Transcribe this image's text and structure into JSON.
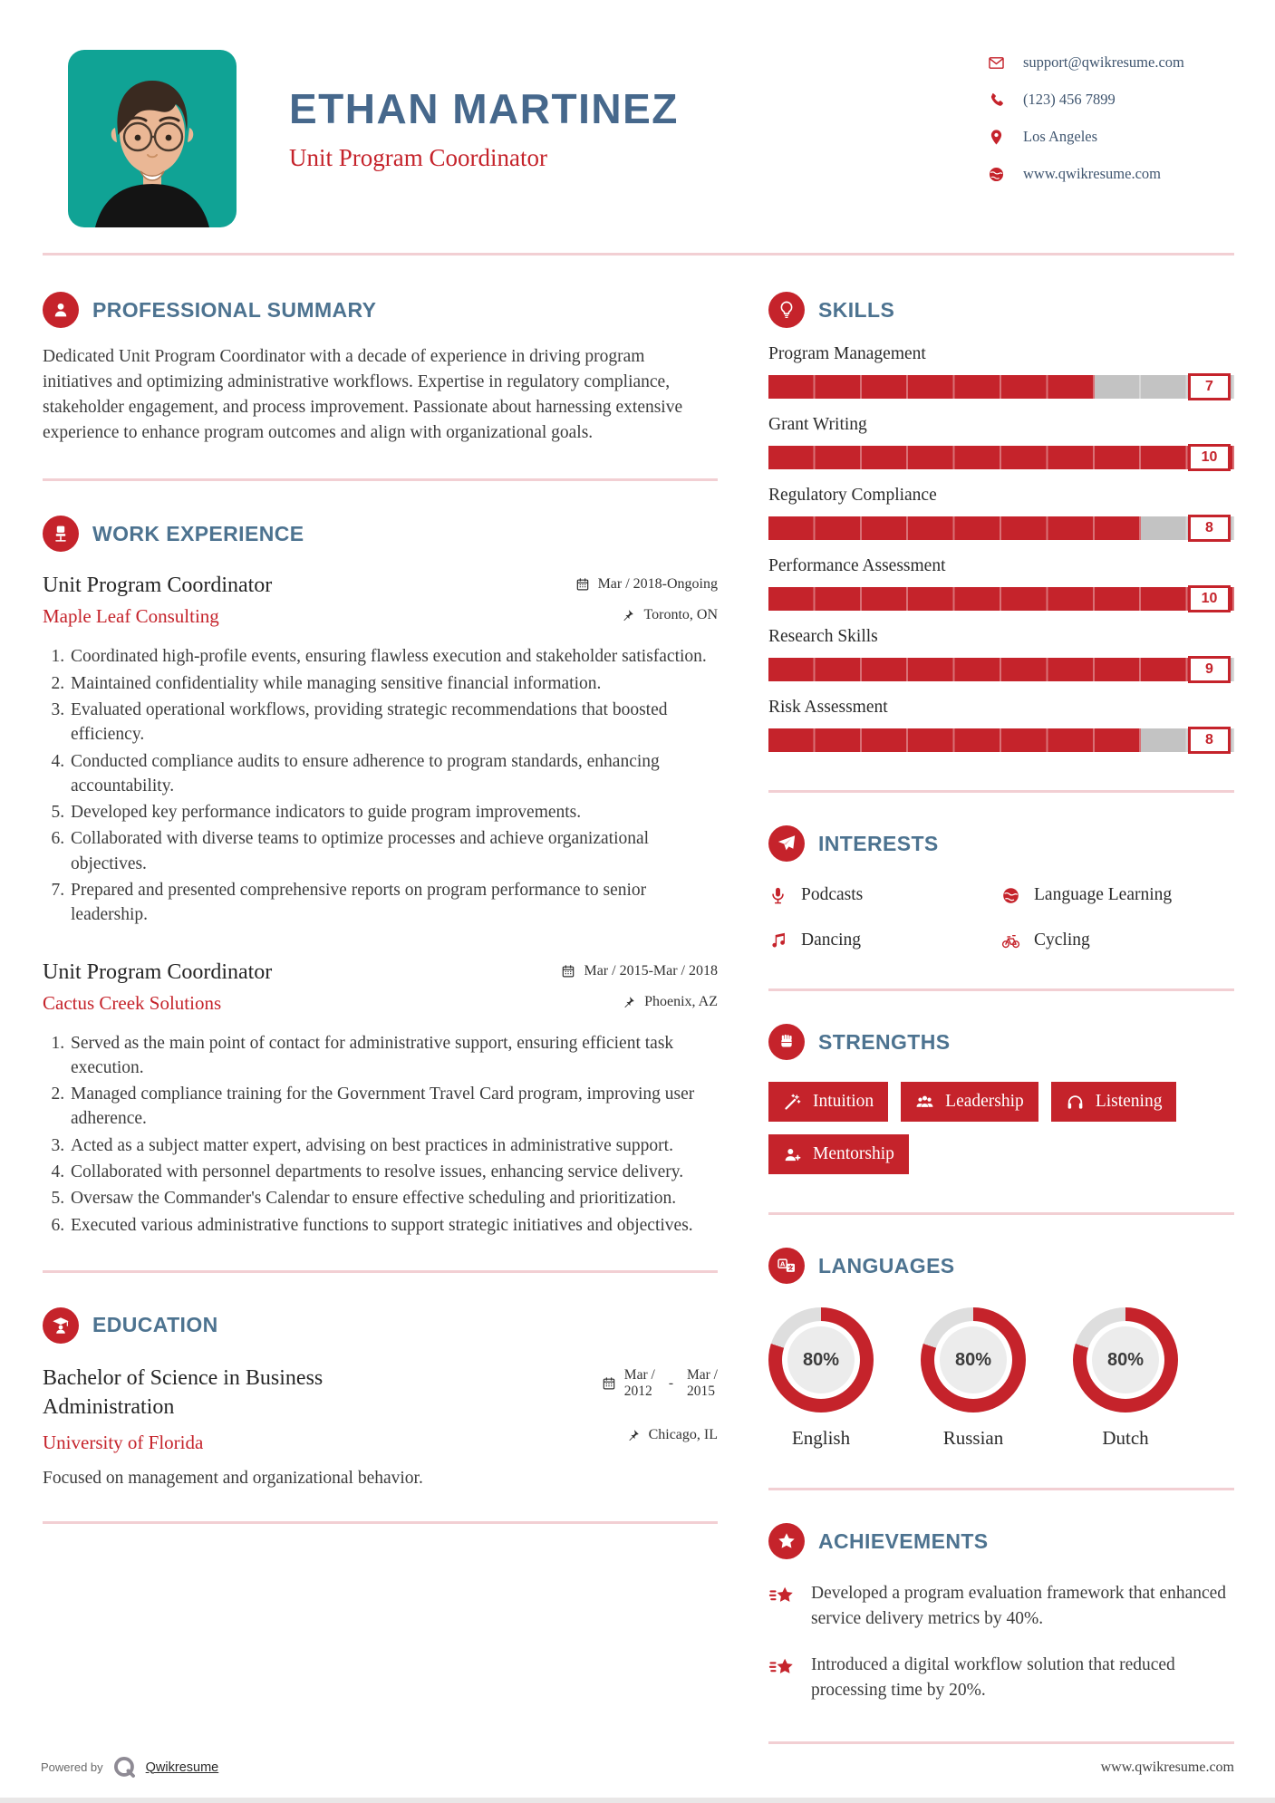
{
  "header": {
    "name": "ETHAN MARTINEZ",
    "title": "Unit Program Coordinator",
    "contact": [
      {
        "icon": "envelope-icon",
        "text": "support@qwikresume.com"
      },
      {
        "icon": "phone-icon",
        "text": "(123) 456 7899"
      },
      {
        "icon": "location-pin-icon",
        "text": "Los Angeles"
      },
      {
        "icon": "globe-icon",
        "text": "www.qwikresume.com"
      }
    ]
  },
  "summary": {
    "heading": "PROFESSIONAL SUMMARY",
    "icon": "person-icon",
    "text": "Dedicated Unit Program Coordinator with a decade of experience in driving program initiatives and optimizing administrative workflows. Expertise in regulatory compliance, stakeholder engagement, and process improvement. Passionate about harnessing extensive experience to enhance program outcomes and align with organizational goals."
  },
  "work": {
    "heading": "WORK EXPERIENCE",
    "icon": "office-chair-icon",
    "jobs": [
      {
        "title": "Unit Program Coordinator",
        "company": "Maple Leaf Consulting",
        "date": "Mar / 2018-Ongoing",
        "location": "Toronto, ON",
        "items": [
          "Coordinated high-profile events, ensuring flawless execution and stakeholder satisfaction.",
          "Maintained confidentiality while managing sensitive financial information.",
          "Evaluated operational workflows, providing strategic recommendations that boosted efficiency.",
          "Conducted compliance audits to ensure adherence to program standards, enhancing accountability.",
          "Developed key performance indicators to guide program improvements.",
          "Collaborated with diverse teams to optimize processes and achieve organizational objectives.",
          "Prepared and presented comprehensive reports on program performance to senior leadership."
        ]
      },
      {
        "title": "Unit Program Coordinator",
        "company": "Cactus Creek Solutions",
        "date": "Mar / 2015-Mar / 2018",
        "location": "Phoenix, AZ",
        "items": [
          "Served as the main point of contact for administrative support, ensuring efficient task execution.",
          "Managed compliance training for the Government Travel Card program, improving user adherence.",
          "Acted as a subject matter expert, advising on best practices in administrative support.",
          "Collaborated with personnel departments to resolve issues, enhancing service delivery.",
          "Oversaw the Commander's Calendar to ensure effective scheduling and prioritization.",
          "Executed various administrative functions to support strategic initiatives and objectives."
        ]
      }
    ]
  },
  "education": {
    "heading": "EDUCATION",
    "icon": "graduate-icon",
    "degree": "Bachelor of Science in Business Administration",
    "school": "University of Florida",
    "date_start_top": "Mar /",
    "date_start_bottom": "2012",
    "date_dash": "-",
    "date_end_top": "Mar /",
    "date_end_bottom": "2015",
    "location": "Chicago, IL",
    "description": "Focused on management and organizational behavior."
  },
  "skills": {
    "heading": "SKILLS",
    "icon": "lightbulb-icon",
    "max": 10,
    "items": [
      {
        "label": "Program Management",
        "value": 7
      },
      {
        "label": "Grant Writing",
        "value": 10
      },
      {
        "label": "Regulatory Compliance",
        "value": 8
      },
      {
        "label": "Performance Assessment",
        "value": 10
      },
      {
        "label": "Research Skills",
        "value": 9
      },
      {
        "label": "Risk Assessment",
        "value": 8
      }
    ]
  },
  "interests": {
    "heading": "INTERESTS",
    "icon": "paper-plane-icon",
    "items": [
      {
        "icon": "microphone-icon",
        "label": "Podcasts"
      },
      {
        "icon": "globe-icon",
        "label": "Language Learning"
      },
      {
        "icon": "music-note-icon",
        "label": "Dancing"
      },
      {
        "icon": "bicycle-icon",
        "label": "Cycling"
      }
    ]
  },
  "strengths": {
    "heading": "STRENGTHS",
    "icon": "fist-icon",
    "items": [
      {
        "icon": "magic-wand-icon",
        "label": "Intuition"
      },
      {
        "icon": "group-icon",
        "label": "Leadership"
      },
      {
        "icon": "headphones-icon",
        "label": "Listening"
      },
      {
        "icon": "person-plus-icon",
        "label": "Mentorship"
      }
    ]
  },
  "languages": {
    "heading": "LANGUAGES",
    "icon": "translate-icon",
    "items": [
      {
        "label": "English",
        "percent": 80,
        "percent_label": "80%"
      },
      {
        "label": "Russian",
        "percent": 80,
        "percent_label": "80%"
      },
      {
        "label": "Dutch",
        "percent": 80,
        "percent_label": "80%"
      }
    ]
  },
  "achievements": {
    "heading": "ACHIEVEMENTS",
    "icon": "star-icon",
    "items": [
      {
        "icon": "shooting-star-icon",
        "text": "Developed a program evaluation framework that enhanced service delivery metrics by 40%."
      },
      {
        "icon": "shooting-star-icon",
        "text": "Introduced a digital workflow solution that reduced processing time by 20%."
      }
    ]
  },
  "footer": {
    "powered_by": "Powered by",
    "brand": "Qwikresume",
    "brand_icon": "qwikresume-logo",
    "website": "www.qwikresume.com"
  },
  "colors": {
    "accent_red": "#c5232b",
    "heading_blue": "#4d7390",
    "name_blue": "#46688c",
    "divider_pink": "#f2cfd3",
    "photo_teal": "#10a395",
    "bar_gray": "#c3c3c3",
    "donut_gray": "#dedede"
  }
}
